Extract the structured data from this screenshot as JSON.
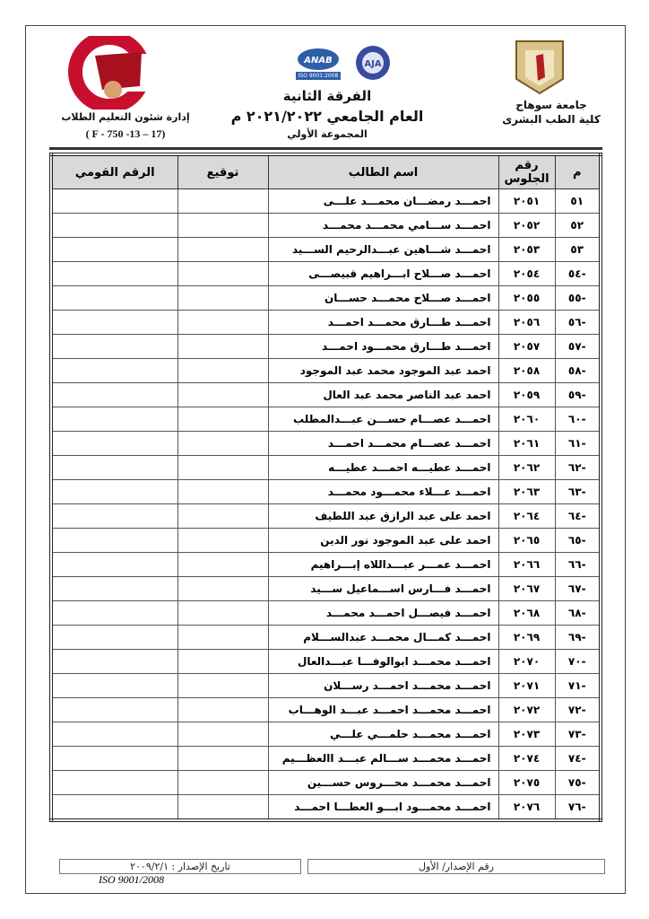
{
  "header": {
    "university": "جامعة سوهاج",
    "faculty": "كلية الطب البشرى",
    "year_level": "الفرقة الثانية",
    "academic_year": "العام الجامعي ٢٠٢١/٢٠٢٢ م",
    "group": "المجموعة الأولي",
    "department": "إدارة شئون التعليم الطلاب",
    "form_code": "( F - 750 -13 – 17)",
    "logo_left_text": "جامعة سوهاج كلية الطب",
    "anab_text": "ANAB",
    "iso_badge_text": "ISO 9001:2008",
    "aja_text": "AJA"
  },
  "table": {
    "columns": [
      "م",
      "رقم الجلوس",
      "اسم الطالب",
      "توقيع",
      "الرقم القومي"
    ],
    "rows": [
      {
        "n": "٥١",
        "seat": "٢٠٥١",
        "name": "احمـــد رمضـــان محمـــد علـــى"
      },
      {
        "n": "٥٢",
        "seat": "٢٠٥٢",
        "name": "احمـــد ســـامي محمـــد محمـــد"
      },
      {
        "n": "٥٣",
        "seat": "٢٠٥٣",
        "name": "احمـــد شـــاهين عبـــدالرحيم الســـيد"
      },
      {
        "n": "-٥٤",
        "seat": "٢٠٥٤",
        "name": "احمـــد صـــلاح ابـــراهيم قبيصـــى"
      },
      {
        "n": "-٥٥",
        "seat": "٢٠٥٥",
        "name": "احمـــد صـــلاح محمـــد حســـان"
      },
      {
        "n": "-٥٦",
        "seat": "٢٠٥٦",
        "name": "احمـــد طـــارق محمـــد احمـــد"
      },
      {
        "n": "-٥٧",
        "seat": "٢٠٥٧",
        "name": "احمـــد طـــارق محمـــود احمـــد"
      },
      {
        "n": "-٥٨",
        "seat": "٢٠٥٨",
        "name": "احمد عبد الموجود محمد عبد الموجود"
      },
      {
        "n": "-٥٩",
        "seat": "٢٠٥٩",
        "name": "احمد عبد الناصر محمد عبد العال"
      },
      {
        "n": "-٦٠",
        "seat": "٢٠٦٠",
        "name": "احمـــد عصـــام حســـن عبـــدالمطلب"
      },
      {
        "n": "-٦١",
        "seat": "٢٠٦١",
        "name": "احمـــد عصـــام محمـــد احمـــد"
      },
      {
        "n": "-٦٢",
        "seat": "٢٠٦٢",
        "name": "احمـــد عطيـــه احمـــد عطيـــه"
      },
      {
        "n": "-٦٣",
        "seat": "٢٠٦٣",
        "name": "احمـــد عـــلاء محمـــود محمـــد"
      },
      {
        "n": "-٦٤",
        "seat": "٢٠٦٤",
        "name": "احمد على عبد الرازق عبد اللطيف"
      },
      {
        "n": "-٦٥",
        "seat": "٢٠٦٥",
        "name": "احمد على عبد الموجود نور الدين"
      },
      {
        "n": "-٦٦",
        "seat": "٢٠٦٦",
        "name": "احمـــد عمـــر عبـــداللاه إبـــراهيم"
      },
      {
        "n": "-٦٧",
        "seat": "٢٠٦٧",
        "name": "احمـــد فـــارس اســـماعيل ســـيد"
      },
      {
        "n": "-٦٨",
        "seat": "٢٠٦٨",
        "name": "احمـــد فيصـــل احمـــد محمـــد"
      },
      {
        "n": "-٦٩",
        "seat": "٢٠٦٩",
        "name": "احمـــد كمـــال محمـــد عبدالســـلام"
      },
      {
        "n": "-٧٠",
        "seat": "٢٠٧٠",
        "name": "احمـــد محمـــد ابوالوفـــا عبـــدالعال"
      },
      {
        "n": "-٧١",
        "seat": "٢٠٧١",
        "name": "احمـــد محمـــد احمـــد رســـلان"
      },
      {
        "n": "-٧٢",
        "seat": "٢٠٧٢",
        "name": "احمـــد محمـــد احمـــد عبـــد الوهـــاب"
      },
      {
        "n": "-٧٣",
        "seat": "٢٠٧٣",
        "name": "احمـــد محمـــد حلمـــي علـــي"
      },
      {
        "n": "-٧٤",
        "seat": "٢٠٧٤",
        "name": "احمـــد محمـــد ســـالم عبـــد االعظـــيم"
      },
      {
        "n": "-٧٥",
        "seat": "٢٠٧٥",
        "name": "احمـــد محمـــد محـــروس حســـين"
      },
      {
        "n": "-٧٦",
        "seat": "٢٠٧٦",
        "name": "احمـــد محمـــود ابـــو العطـــا احمـــد"
      }
    ]
  },
  "footer": {
    "issue_number": "رقم الإصدار/ الأول",
    "issue_date": "تاريخ الإصدار : ٢٠٠٩/٢/١",
    "iso": "ISO 9001/2008"
  }
}
